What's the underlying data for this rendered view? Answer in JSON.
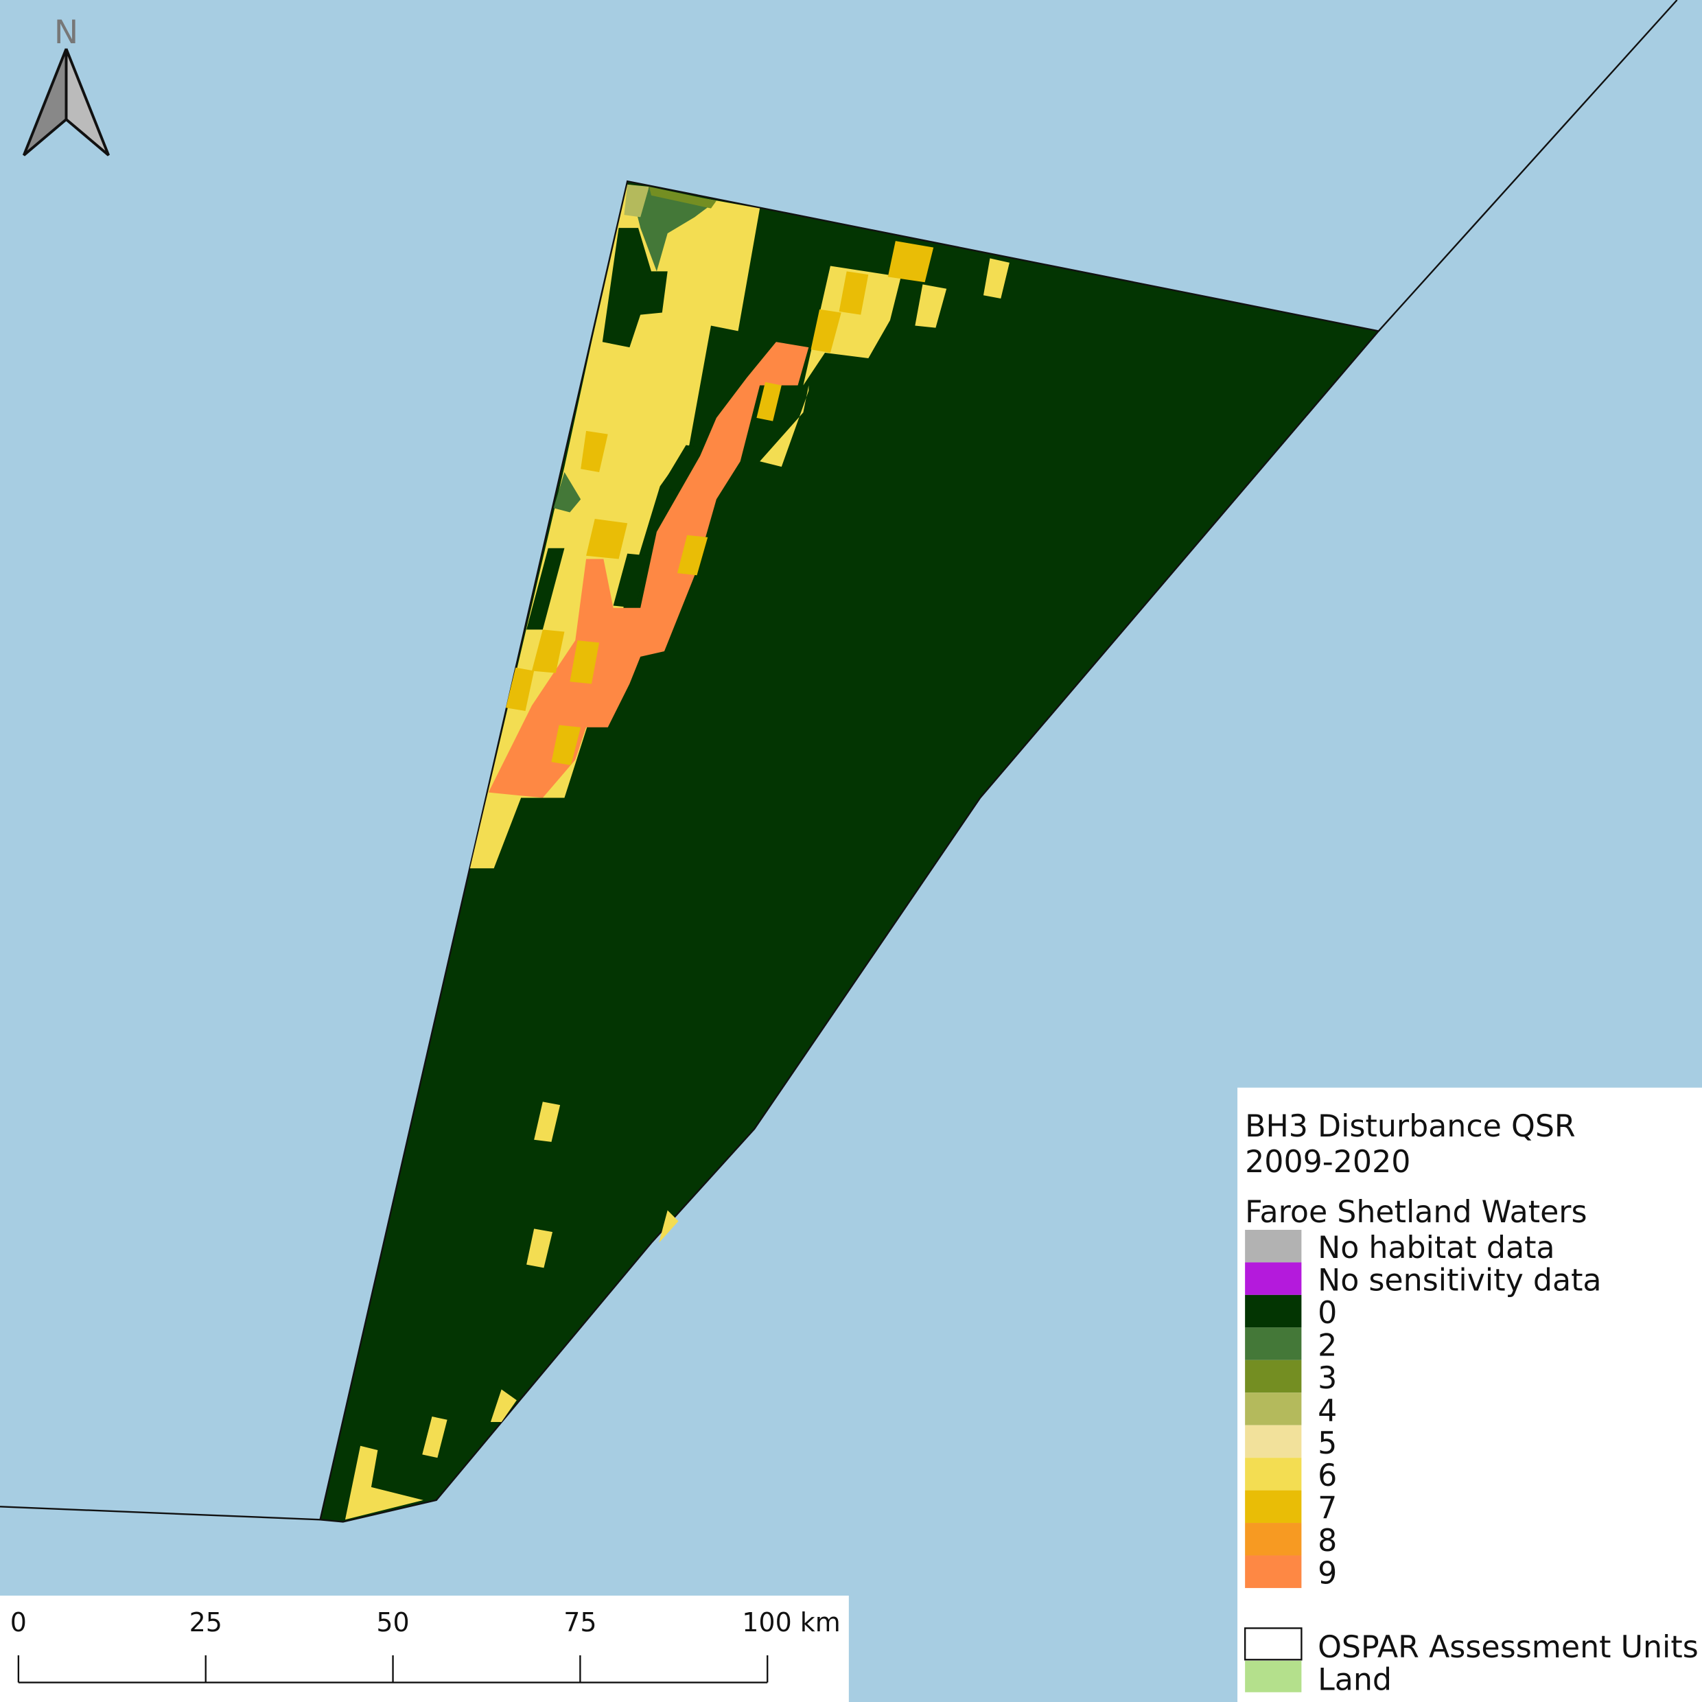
{
  "north_label": "N",
  "legend": {
    "title": "BH3 Disturbance QSR",
    "subtitle": "2009-2020",
    "group_title": "Faroe Shetland Waters",
    "items": [
      {
        "label": "No habitat data",
        "color": "#b2b2b2"
      },
      {
        "label": "No sensitivity data",
        "color": "#b41adc"
      },
      {
        "label": "0",
        "color": "#033502"
      },
      {
        "label": "2",
        "color": "#447838"
      },
      {
        "label": "3",
        "color": "#748e22"
      },
      {
        "label": "4",
        "color": "#b4ba5c"
      },
      {
        "label": "5",
        "color": "#f2e19b"
      },
      {
        "label": "6",
        "color": "#f3dd52"
      },
      {
        "label": "7",
        "color": "#e9bd06"
      },
      {
        "label": "8",
        "color": "#f79a22"
      },
      {
        "label": "9",
        "color": "#fe8844"
      }
    ],
    "extra_items": [
      {
        "label": "OSPAR Assessment Units",
        "color": "#ffffff"
      },
      {
        "label": "Land",
        "color": "#b4e08c"
      }
    ]
  },
  "scale_bar": {
    "labels": [
      "0",
      "25",
      "50",
      "75",
      "100 km"
    ]
  }
}
